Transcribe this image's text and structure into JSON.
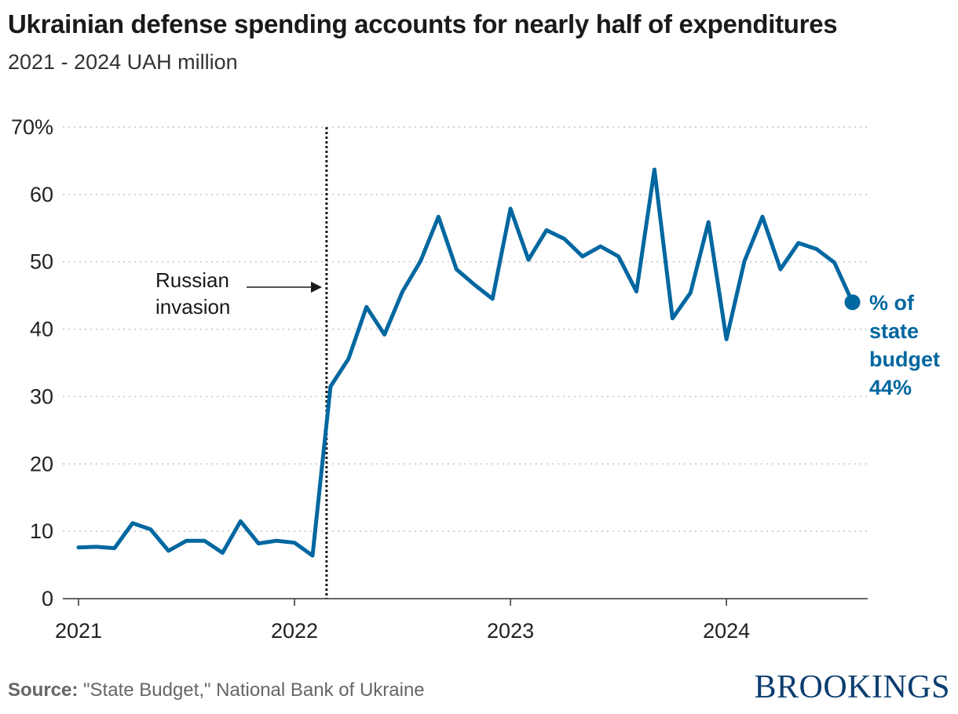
{
  "header": {
    "title": "Ukrainian defense spending accounts for nearly half of expenditures",
    "subtitle": "2021 - 2024 UAH million"
  },
  "chart_data": {
    "type": "line",
    "title": "Ukrainian defense spending accounts for nearly half of expenditures",
    "subtitle": "2021 - 2024 UAH million",
    "xlabel": "",
    "ylabel": "",
    "x_start": "2021-01",
    "x_ticks": [
      "2021",
      "2022",
      "2023",
      "2024"
    ],
    "y_ticks": [
      "0",
      "10",
      "20",
      "30",
      "40",
      "50",
      "60",
      "70%"
    ],
    "ylim": [
      0,
      70
    ],
    "grid": "horizontal dotted",
    "series": [
      {
        "name": "% of state budget",
        "color": "#0067a0",
        "x": [
          "2021-01",
          "2021-02",
          "2021-03",
          "2021-04",
          "2021-05",
          "2021-06",
          "2021-07",
          "2021-08",
          "2021-09",
          "2021-10",
          "2021-11",
          "2021-12",
          "2022-01",
          "2022-02",
          "2022-03",
          "2022-04",
          "2022-05",
          "2022-06",
          "2022-07",
          "2022-08",
          "2022-09",
          "2022-10",
          "2022-11",
          "2022-12",
          "2023-01",
          "2023-02",
          "2023-03",
          "2023-04",
          "2023-05",
          "2023-06",
          "2023-07",
          "2023-08",
          "2023-09",
          "2023-10",
          "2023-11",
          "2023-12",
          "2024-01",
          "2024-02",
          "2024-03",
          "2024-04",
          "2024-05",
          "2024-06",
          "2024-07",
          "2024-08"
        ],
        "values": [
          7.6,
          7.7,
          7.5,
          11.2,
          10.3,
          7.1,
          8.6,
          8.6,
          6.8,
          11.5,
          8.2,
          8.6,
          8.3,
          6.4,
          31.5,
          35.6,
          43.3,
          39.2,
          45.6,
          50.1,
          56.7,
          48.9,
          46.6,
          44.5,
          57.9,
          50.3,
          54.7,
          53.4,
          50.8,
          52.3,
          50.8,
          45.6,
          63.7,
          41.6,
          45.4,
          55.9,
          38.5,
          50.1,
          56.7,
          48.9,
          52.8,
          51.9,
          49.9,
          44.0
        ]
      }
    ],
    "end_label": {
      "lines": [
        "% of",
        "state",
        "budget",
        "44%"
      ]
    },
    "annotation": {
      "lines": [
        "Russian",
        "invasion"
      ],
      "date": "2022-03"
    }
  },
  "footer": {
    "source_label": "Source:",
    "source_text": "\"State Budget,\" National Bank of Ukraine",
    "logo": "BROOKINGS"
  },
  "colors": {
    "line": "#0067a0",
    "grid": "#c4c4c4",
    "text": "#1a1a1a",
    "logo": "#0a3d6e"
  }
}
